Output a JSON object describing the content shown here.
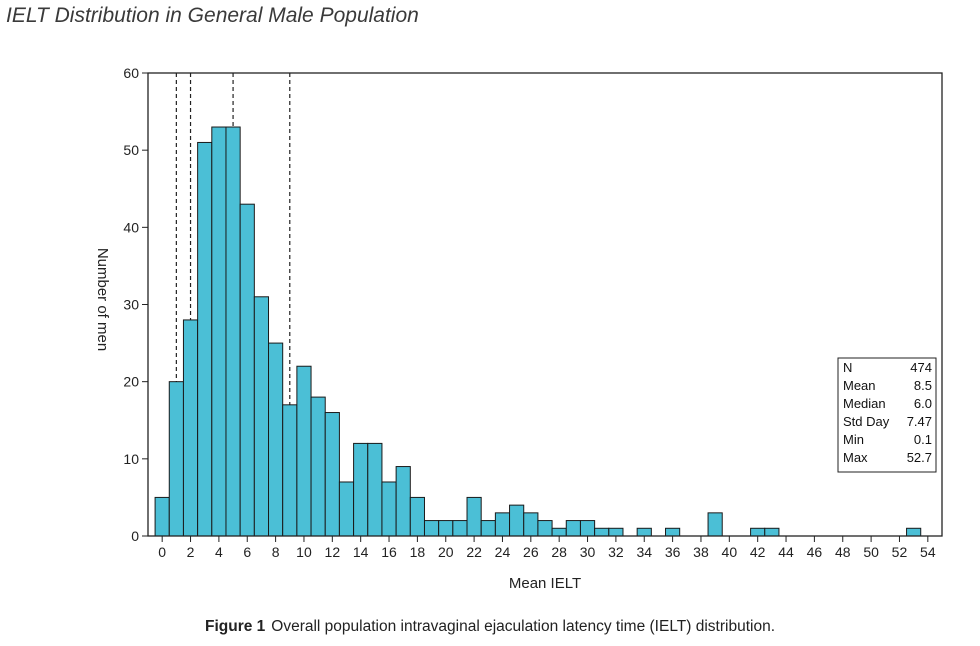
{
  "title": "IELT Distribution in General Male Population",
  "caption": {
    "label": "Figure 1",
    "text": "Overall population intravaginal ejaculation latency time (IELT) distribution."
  },
  "colors": {
    "bar_fill": "#4bbfd6",
    "bar_stroke": "#1a1a1a"
  },
  "chart_data": {
    "type": "bar",
    "title": "",
    "xlabel": "Mean IELT",
    "ylabel": "Number of men",
    "xlim": [
      -1,
      55
    ],
    "ylim": [
      0,
      60
    ],
    "bin_width": 1,
    "x_ticks": [
      0,
      2,
      4,
      6,
      8,
      10,
      12,
      14,
      16,
      18,
      20,
      22,
      24,
      26,
      28,
      30,
      32,
      34,
      36,
      38,
      40,
      42,
      44,
      46,
      48,
      50,
      52,
      54
    ],
    "y_ticks": [
      0,
      10,
      20,
      30,
      40,
      50,
      60
    ],
    "bins": [
      {
        "x": 0,
        "value": 5
      },
      {
        "x": 1,
        "value": 20
      },
      {
        "x": 2,
        "value": 28
      },
      {
        "x": 3,
        "value": 51
      },
      {
        "x": 4,
        "value": 53
      },
      {
        "x": 5,
        "value": 53
      },
      {
        "x": 6,
        "value": 43
      },
      {
        "x": 7,
        "value": 31
      },
      {
        "x": 8,
        "value": 25
      },
      {
        "x": 9,
        "value": 17
      },
      {
        "x": 10,
        "value": 22
      },
      {
        "x": 11,
        "value": 18
      },
      {
        "x": 12,
        "value": 16
      },
      {
        "x": 13,
        "value": 7
      },
      {
        "x": 14,
        "value": 12
      },
      {
        "x": 15,
        "value": 12
      },
      {
        "x": 16,
        "value": 7
      },
      {
        "x": 17,
        "value": 9
      },
      {
        "x": 18,
        "value": 5
      },
      {
        "x": 19,
        "value": 2
      },
      {
        "x": 20,
        "value": 2
      },
      {
        "x": 21,
        "value": 2
      },
      {
        "x": 22,
        "value": 5
      },
      {
        "x": 23,
        "value": 2
      },
      {
        "x": 24,
        "value": 3
      },
      {
        "x": 25,
        "value": 4
      },
      {
        "x": 26,
        "value": 3
      },
      {
        "x": 27,
        "value": 2
      },
      {
        "x": 28,
        "value": 1
      },
      {
        "x": 29,
        "value": 2
      },
      {
        "x": 30,
        "value": 2
      },
      {
        "x": 31,
        "value": 1
      },
      {
        "x": 32,
        "value": 1
      },
      {
        "x": 34,
        "value": 1
      },
      {
        "x": 36,
        "value": 1
      },
      {
        "x": 39,
        "value": 3
      },
      {
        "x": 42,
        "value": 1
      },
      {
        "x": 43,
        "value": 1
      },
      {
        "x": 53,
        "value": 1
      }
    ],
    "reference_lines": [
      1,
      2,
      5,
      9
    ],
    "grid": false,
    "legend": "none",
    "stats_box": {
      "placement": "right",
      "rows": [
        {
          "label": "N",
          "value": "474"
        },
        {
          "label": "Mean",
          "value": "8.5"
        },
        {
          "label": "Median",
          "value": "6.0"
        },
        {
          "label": "Std Day",
          "value": "7.47"
        },
        {
          "label": "Min",
          "value": "0.1"
        },
        {
          "label": "Max",
          "value": "52.7"
        }
      ]
    }
  }
}
